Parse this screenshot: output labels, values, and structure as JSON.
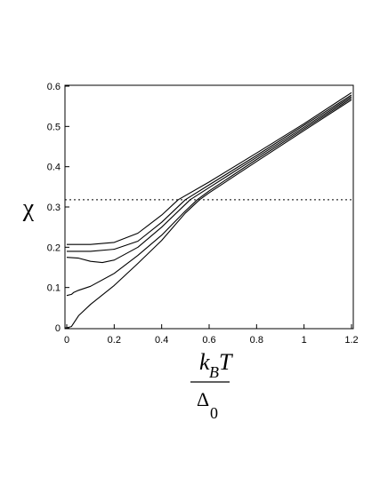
{
  "chart_data": {
    "type": "line",
    "xlabel": {
      "main": "k",
      "sub1": "B",
      "mid": "T",
      "den": "Δ",
      "sub2": "0"
    },
    "ylabel": "χ",
    "xlim": [
      0,
      1.2
    ],
    "ylim": [
      0,
      0.6
    ],
    "xticks": [
      0,
      0.2,
      0.4,
      0.6,
      0.8,
      1,
      1.2
    ],
    "xtick_labels": [
      "0",
      "0.2",
      "0.4",
      "0.6",
      "0.8",
      "1",
      "1.2"
    ],
    "yticks": [
      0,
      0.1,
      0.2,
      0.3,
      0.4,
      0.5,
      0.6
    ],
    "ytick_labels": [
      "0",
      "0.1",
      "0.2",
      "0.3",
      "0.4",
      "0.5",
      "0.6"
    ],
    "reference_line": {
      "y": 0.318,
      "style": "dotted"
    },
    "series": [
      {
        "x": [
          0,
          0.1,
          0.2,
          0.3,
          0.4,
          0.47,
          0.6,
          0.8,
          1.0,
          1.2
        ],
        "y": [
          0.207,
          0.207,
          0.212,
          0.235,
          0.28,
          0.318,
          0.362,
          0.434,
          0.507,
          0.584
        ]
      },
      {
        "x": [
          0,
          0.1,
          0.2,
          0.3,
          0.4,
          0.5,
          0.6,
          0.8,
          1.0,
          1.2
        ],
        "y": [
          0.19,
          0.19,
          0.195,
          0.215,
          0.262,
          0.318,
          0.355,
          0.428,
          0.503,
          0.578
        ]
      },
      {
        "x": [
          0,
          0.05,
          0.1,
          0.15,
          0.2,
          0.3,
          0.4,
          0.52,
          0.6,
          0.8,
          1.0,
          1.2
        ],
        "y": [
          0.175,
          0.173,
          0.165,
          0.162,
          0.168,
          0.2,
          0.25,
          0.318,
          0.348,
          0.423,
          0.498,
          0.574
        ]
      },
      {
        "x": [
          0,
          0.02,
          0.03,
          0.05,
          0.1,
          0.2,
          0.3,
          0.4,
          0.5,
          0.55,
          0.6,
          0.8,
          1.0,
          1.2
        ],
        "y": [
          0.08,
          0.083,
          0.088,
          0.093,
          0.103,
          0.135,
          0.18,
          0.23,
          0.29,
          0.318,
          0.34,
          0.418,
          0.494,
          0.57
        ]
      },
      {
        "x": [
          0,
          0.02,
          0.05,
          0.1,
          0.2,
          0.3,
          0.4,
          0.5,
          0.56,
          0.6,
          0.8,
          1.0,
          1.2
        ],
        "y": [
          0,
          0.003,
          0.03,
          0.058,
          0.105,
          0.16,
          0.217,
          0.285,
          0.318,
          0.335,
          0.413,
          0.49,
          0.566
        ]
      }
    ]
  }
}
